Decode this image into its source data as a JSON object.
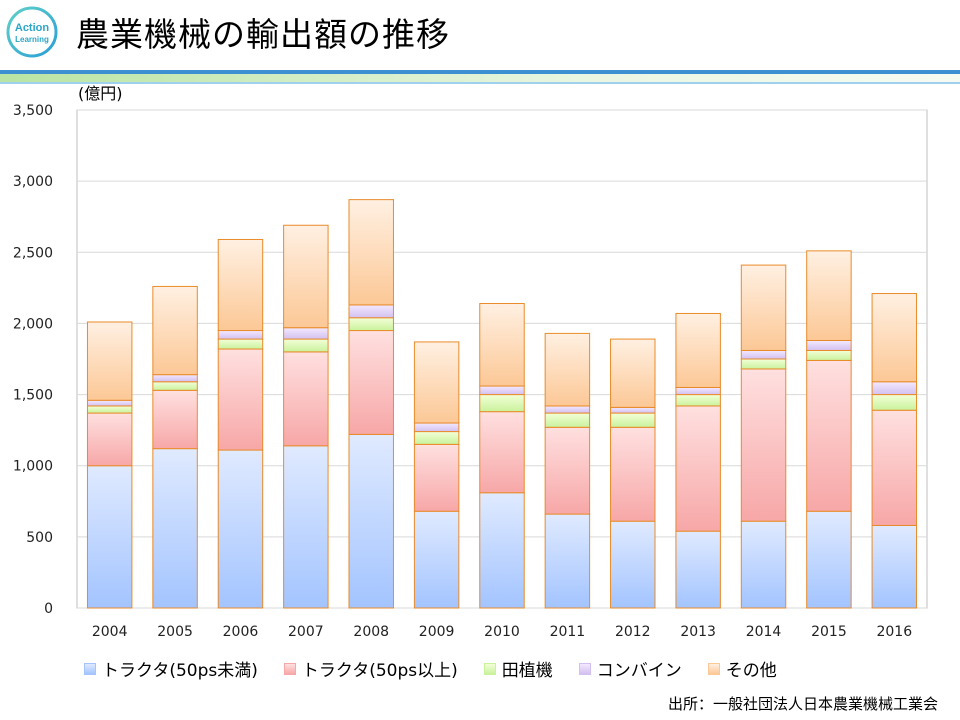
{
  "header": {
    "title": "農業機械の輸出額の推移",
    "logo_text_top": "Action",
    "logo_text_bottom": "Learning"
  },
  "colors": {
    "accent_blue": "#3c8fd0",
    "accent_green": "#b9e4a3"
  },
  "chart_data": {
    "type": "bar",
    "stacked": true,
    "title": "農業機械の輸出額の推移",
    "ylabel": "(億円)",
    "xlabel": "",
    "ylim": [
      0,
      3500
    ],
    "yticks": [
      0,
      500,
      1000,
      1500,
      2000,
      2500,
      3000,
      3500
    ],
    "ytick_labels": [
      "0",
      "500",
      "1,000",
      "1,500",
      "2,000",
      "2,500",
      "3,000",
      "3,500"
    ],
    "categories": [
      "2004",
      "2005",
      "2006",
      "2007",
      "2008",
      "2009",
      "2010",
      "2011",
      "2012",
      "2013",
      "2014",
      "2015",
      "2016"
    ],
    "series": [
      {
        "name": "トラクタ(50ps未満)",
        "fill_top": "#e0eaff",
        "fill_bottom": "#a3c4ff",
        "stroke": "#e98b2a",
        "values": [
          1000,
          1120,
          1110,
          1140,
          1220,
          680,
          810,
          660,
          610,
          540,
          610,
          680,
          580
        ]
      },
      {
        "name": "トラクタ(50ps以上)",
        "fill_top": "#ffe0e0",
        "fill_bottom": "#f7a7a7",
        "stroke": "#e98b2a",
        "values": [
          370,
          410,
          710,
          660,
          730,
          470,
          570,
          610,
          660,
          880,
          1070,
          1060,
          810
        ]
      },
      {
        "name": "田植機",
        "fill_top": "#f3ffd8",
        "fill_bottom": "#c9f29c",
        "stroke": "#e98b2a",
        "values": [
          50,
          60,
          70,
          90,
          90,
          90,
          120,
          100,
          100,
          80,
          70,
          70,
          110
        ]
      },
      {
        "name": "コンバイン",
        "fill_top": "#f3e9ff",
        "fill_bottom": "#d2c0f0",
        "stroke": "#e98b2a",
        "values": [
          40,
          50,
          60,
          80,
          90,
          60,
          60,
          50,
          40,
          50,
          60,
          70,
          90
        ]
      },
      {
        "name": "その他",
        "fill_top": "#fff0e2",
        "fill_bottom": "#fcc896",
        "stroke": "#e98b2a",
        "values": [
          550,
          620,
          640,
          720,
          740,
          570,
          580,
          510,
          480,
          520,
          600,
          630,
          620
        ]
      }
    ],
    "legend_position": "bottom"
  },
  "footer": {
    "source": "出所：一般社団法人日本農業機械工業会"
  }
}
